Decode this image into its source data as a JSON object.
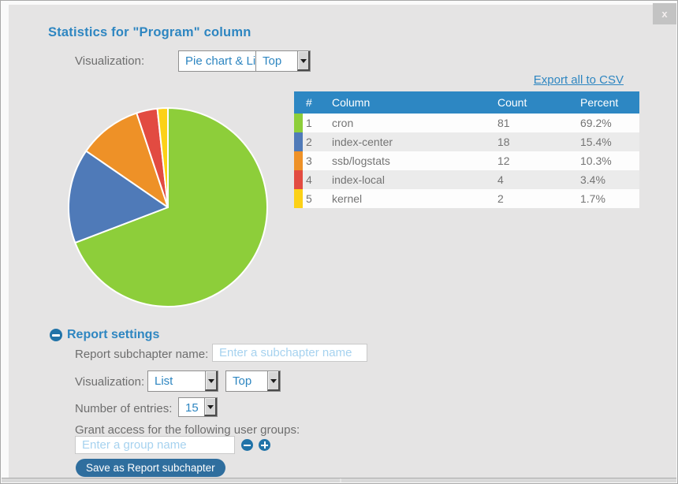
{
  "dialog": {
    "title": "Statistics for \"Program\" column",
    "close_label": "x"
  },
  "toolbar": {
    "visualization_label": "Visualization:",
    "visualization_value": "Pie chart & List",
    "top_value": "Top"
  },
  "export_link": "Export all to CSV",
  "table": {
    "headers": {
      "rank": "#",
      "column": "Column",
      "count": "Count",
      "percent": "Percent"
    },
    "rows": [
      {
        "rank": "1",
        "column": "cron",
        "count": "81",
        "percent": "69.2%",
        "color": "#8dce3a"
      },
      {
        "rank": "2",
        "column": "index-center",
        "count": "18",
        "percent": "15.4%",
        "color": "#4f7ab8"
      },
      {
        "rank": "3",
        "column": "ssb/logstats",
        "count": "12",
        "percent": "10.3%",
        "color": "#ee9127"
      },
      {
        "rank": "4",
        "column": "index-local",
        "count": "4",
        "percent": "3.4%",
        "color": "#e24b41"
      },
      {
        "rank": "5",
        "column": "kernel",
        "count": "2",
        "percent": "1.7%",
        "color": "#fcd116"
      }
    ]
  },
  "chart_data": {
    "type": "pie",
    "title": "Statistics for \"Program\" column",
    "categories": [
      "cron",
      "index-center",
      "ssb-logstats",
      "index-local",
      "kernel"
    ],
    "values": [
      81,
      18,
      12,
      4,
      2
    ],
    "percents": [
      69.2,
      15.4,
      10.3,
      3.4,
      1.7
    ],
    "colors": [
      "#8dce3a",
      "#4f7ab8",
      "#ee9127",
      "#e24b41",
      "#fcd116"
    ],
    "start_angle_deg": 0,
    "direction": "clockwise",
    "legend_position": "table-right"
  },
  "report_settings": {
    "heading": "Report settings",
    "subchapter_label": "Report subchapter name:",
    "subchapter_placeholder": "Enter a subchapter name",
    "visualization_label": "Visualization:",
    "visualization_value": "List",
    "top_value": "Top",
    "entries_label": "Number of entries:",
    "entries_value": "15",
    "grant_label": "Grant access for the following user groups:",
    "group_placeholder": "Enter a group name",
    "save_button": "Save as Report subchapter"
  },
  "colors": {
    "accent_blue": "#2e86c1",
    "table_header": "#2d87c3",
    "save_button": "#2f6e9e",
    "icon_blue": "#2173a8",
    "dialog_bg": "#e5e4e4"
  }
}
